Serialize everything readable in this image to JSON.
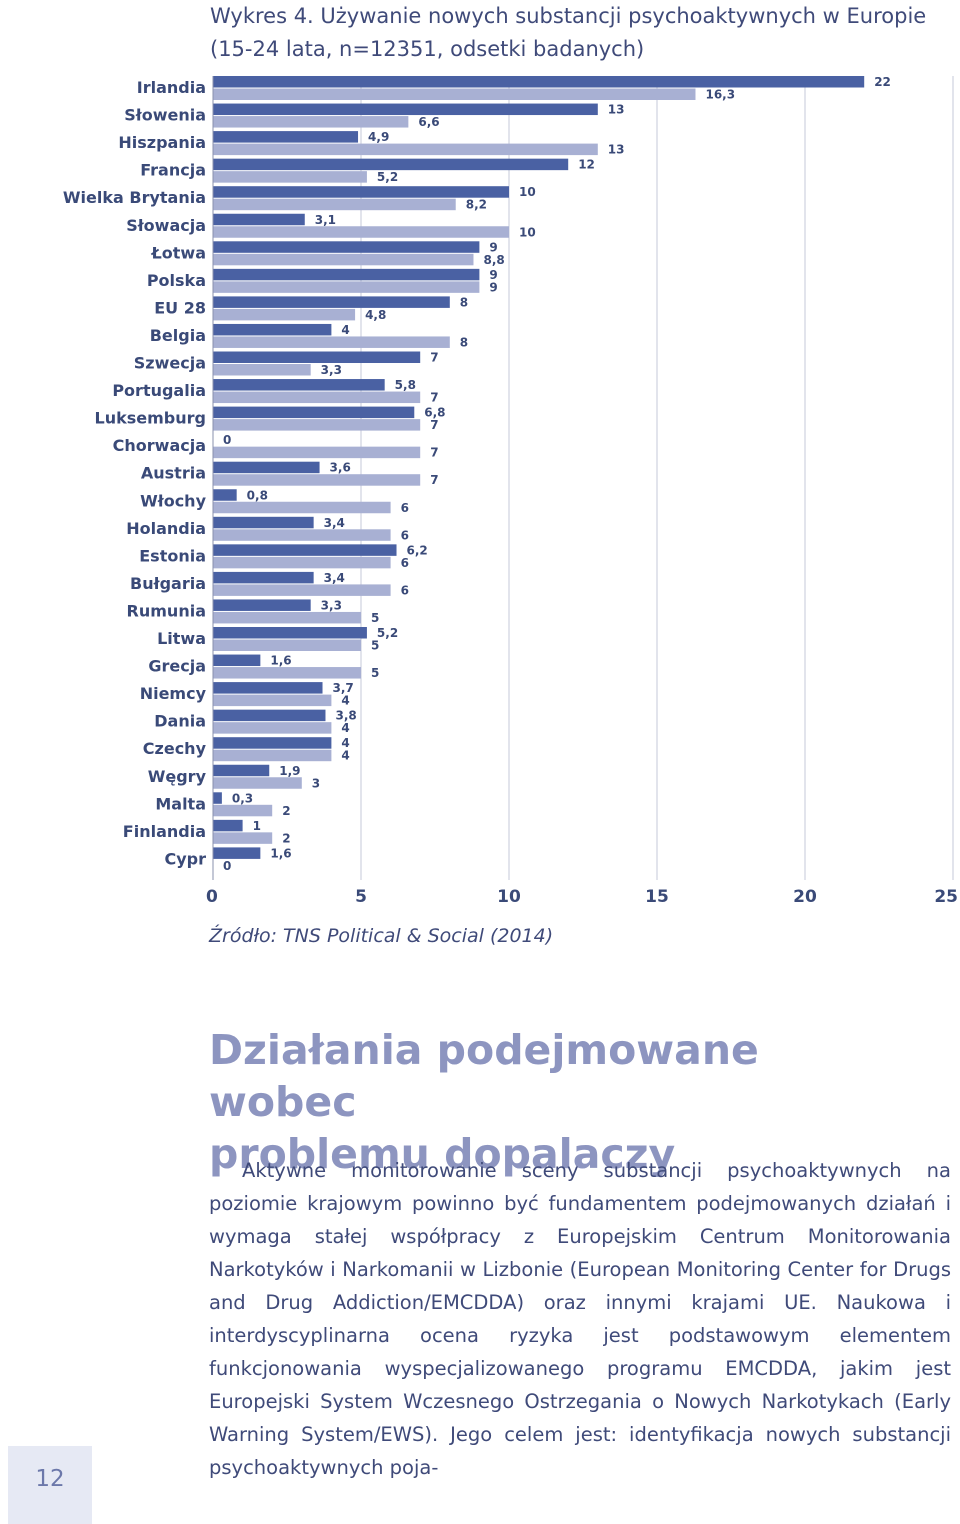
{
  "chart_data": {
    "type": "bar",
    "orientation": "horizontal",
    "title": "Wykres 4. Używanie nowych substancji psychoaktywnych w Europie (15-24 lata, n=12351, odsetki badanych)",
    "title_lines": [
      "Wykres 4. Używanie nowych substancji psychoaktywnych w Europie",
      "(15-24 lata, n=12351, odsetki badanych)"
    ],
    "categories": [
      "Irlandia",
      "Słowenia",
      "Hiszpania",
      "Francja",
      "Wielka Brytania",
      "Słowacja",
      "Łotwa",
      "Polska",
      "EU 28",
      "Belgia",
      "Szwecja",
      "Portugalia",
      "Luksemburg",
      "Chorwacja",
      "Austria",
      "Włochy",
      "Holandia",
      "Estonia",
      "Bułgaria",
      "Rumunia",
      "Litwa",
      "Grecja",
      "Niemcy",
      "Dania",
      "Czechy",
      "Węgry",
      "Malta",
      "Finlandia",
      "Cypr"
    ],
    "series": [
      {
        "values": [
          22,
          13,
          4.9,
          12,
          10,
          3.1,
          9,
          9,
          8,
          4,
          7,
          5.8,
          6.8,
          0,
          3.6,
          0.8,
          3.4,
          6.2,
          3.4,
          3.3,
          5.2,
          1.6,
          3.7,
          3.8,
          4,
          1.9,
          0.3,
          1,
          1.6
        ],
        "labels": [
          "22",
          "13",
          "4,9",
          "12",
          "10",
          "3,1",
          "9",
          "9",
          "8",
          "4",
          "7",
          "5,8",
          "6,8",
          "0",
          "3,6",
          "0,8",
          "3,4",
          "6,2",
          "3,4",
          "3,3",
          "5,2",
          "1,6",
          "3,7",
          "3,8",
          "4",
          "1,9",
          "0,3",
          "1",
          "1,6"
        ]
      },
      {
        "values": [
          16.3,
          6.6,
          13,
          5.2,
          8.2,
          10,
          8.8,
          9,
          4.8,
          8,
          3.3,
          7,
          7,
          7,
          7,
          6,
          6,
          6,
          6,
          5,
          5,
          5,
          4,
          4,
          4,
          3,
          2,
          2,
          0
        ],
        "labels": [
          "16,3",
          "6,6",
          "13",
          "5,2",
          "8,2",
          "10",
          "8,8",
          "9",
          "4,8",
          "8",
          "3,3",
          "7",
          "7",
          "7",
          "7",
          "6",
          "6",
          "6",
          "6",
          "5",
          "5",
          "5",
          "4",
          "4",
          "4",
          "3",
          "2",
          "2",
          "0"
        ]
      }
    ],
    "colors": {
      "dark_series": "#4a61a3",
      "light_series": "#a8b0d3",
      "gridline": "#c6c9d8",
      "text": "#3a4a78"
    },
    "xlim": [
      0,
      25
    ],
    "x_ticks": [
      "0",
      "5",
      "10",
      "15",
      "20",
      "25"
    ],
    "xlabel": "",
    "ylabel": "",
    "grid": "vertical",
    "legend": "none"
  },
  "source": "Źródło: TNS Political & Social (2014)",
  "section_heading_lines": [
    "Działania podejmowane wobec",
    "problemu dopalaczy"
  ],
  "body_text": "Aktywne monitorowanie sceny substancji psychoaktywnych na poziomie krajowym powinno być fundamentem podejmowanych działań i wymaga stałej współpracy z Europejskim Centrum Monitorowania Narkotyków i Narkomanii w Lizbonie (European Monitoring Center for Drugs and Drug Addiction/EMCDDA) oraz innymi krajami UE. Naukowa i interdyscyplinarna ocena ryzyka jest podstawowym elementem funkcjonowania wyspecjalizowanego programu EMCDDA, jakim jest Europejski System Wczesnego Ostrzegania o Nowych Narkotykach (Early Warning System/EWS). Jego celem jest: identyfikacja nowych substancji psychoaktywnych poja-",
  "page_number": "12"
}
